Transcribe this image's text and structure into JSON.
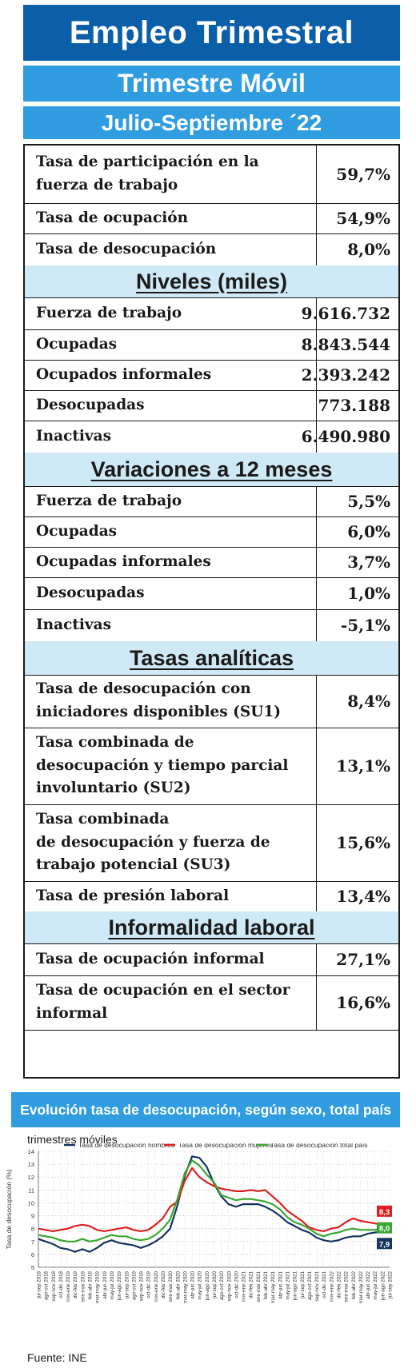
{
  "header": {
    "title": "Empleo Trimestral",
    "subtitle": "Trimestre Móvil",
    "period": "Julio-Septiembre ´22"
  },
  "summary": [
    {
      "label": [
        "Tasa de participación en la",
        "fuerza de trabajo"
      ],
      "value": "59,7%"
    },
    {
      "label": [
        "Tasa de ocupación"
      ],
      "value": "54,9%"
    },
    {
      "label": [
        "Tasa de desocupación"
      ],
      "value": "8,0%"
    }
  ],
  "niveles": {
    "title": "Niveles (miles)",
    "rows": [
      {
        "label": [
          "Fuerza de trabajo"
        ],
        "value": "9.616.732"
      },
      {
        "label": [
          "Ocupadas"
        ],
        "value": "8.843.544"
      },
      {
        "label": [
          "Ocupados informales"
        ],
        "value": "2.393.242"
      },
      {
        "label": [
          "Desocupadas"
        ],
        "value": "773.188"
      },
      {
        "label": [
          "Inactivas"
        ],
        "value": "6.490.980"
      }
    ]
  },
  "variaciones": {
    "title": "Variaciones a 12 meses",
    "rows": [
      {
        "label": [
          "Fuerza de trabajo"
        ],
        "value": "5,5%"
      },
      {
        "label": [
          "Ocupadas"
        ],
        "value": "6,0%"
      },
      {
        "label": [
          "Ocupadas informales"
        ],
        "value": "3,7%"
      },
      {
        "label": [
          "Desocupadas"
        ],
        "value": "1,0%"
      },
      {
        "label": [
          "Inactivas"
        ],
        "value": "-5,1%"
      }
    ]
  },
  "analiticas": {
    "title": "Tasas analíticas",
    "rows": [
      {
        "label": [
          "Tasa de desocupación con",
          "iniciadores disponibles (SU1)"
        ],
        "value": "8,4%"
      },
      {
        "label": [
          "Tasa combinada de",
          "desocupación y tiempo parcial",
          "involuntario (SU2)"
        ],
        "value": "13,1%"
      },
      {
        "label": [
          "Tasa combinada",
          "de desocupación y fuerza de",
          "trabajo potencial (SU3)"
        ],
        "value": "15,6%"
      },
      {
        "label": [
          "Tasa de presión laboral"
        ],
        "value": "13,4%"
      }
    ]
  },
  "informalidad": {
    "title": "Informalidad laboral",
    "rows": [
      {
        "label": [
          "Tasa de ocupación informal"
        ],
        "value": "27,1%"
      },
      {
        "label": [
          "Tasa de ocupación en el sector",
          "informal"
        ],
        "value": "16,6%"
      }
    ]
  },
  "chart_section": {
    "banner": "Evolución tasa de desocupación, según sexo, total país",
    "subtitle": "trimestres móviles"
  },
  "chart_data": {
    "type": "line",
    "ylabel": "Tasa de desocupación (%)",
    "ylim": [
      5,
      14
    ],
    "yticks": [
      5,
      6,
      7,
      8,
      9,
      10,
      11,
      12,
      13,
      14
    ],
    "grid": true,
    "legend_position": "top",
    "x": [
      "jul-sep 2018",
      "ago-oct 2018",
      "sep-nov 2018",
      "oct-dic 2018",
      "nov-ene 2019",
      "dic-feb 2019",
      "ene-mar 2019",
      "feb-abr 2019",
      "mar-may 2019",
      "abr-jun 2019",
      "may-jul 2019",
      "jun-ago 2019",
      "jul-sep 2019",
      "ago-oct 2019",
      "sep-nov 2019",
      "oct-dic 2019",
      "nov-ene 2020",
      "dic-feb 2020",
      "ene-mar 2020",
      "feb-abr 2020",
      "mar-may 2020",
      "abr-jun 2020",
      "may-jul 2020",
      "jun-ago 2020",
      "jul-sep 2020",
      "ago-oct 2020",
      "sep-nov 2020",
      "oct-dic 2020",
      "nov-ene 2021",
      "dic-feb 2021",
      "ene-mar 2021",
      "feb-abr 2021",
      "mar-may 2021",
      "abr-jun 2021",
      "may-jul 2021",
      "jun-ago 2021",
      "jul-sep 2021",
      "ago-oct 2021",
      "sep-nov 2021",
      "oct-dic 2021",
      "nov-ene 2022",
      "dic-feb 2022",
      "ene-mar 2022",
      "feb-abr 2022",
      "mar-may 2022",
      "abr-jun 2022",
      "may-jul 2022",
      "jun-ago 2022",
      "jul-sep 2022"
    ],
    "series": [
      {
        "name": "Tasa de desocupación hombres",
        "color": "#16365f",
        "values": [
          7.2,
          7.0,
          6.8,
          6.5,
          6.4,
          6.2,
          6.4,
          6.2,
          6.5,
          6.9,
          7.1,
          6.9,
          6.8,
          6.7,
          6.5,
          6.7,
          7.0,
          7.4,
          8.0,
          9.8,
          12.1,
          13.6,
          13.5,
          12.8,
          11.5,
          10.5,
          9.9,
          9.7,
          9.9,
          9.9,
          9.9,
          9.7,
          9.4,
          9.0,
          8.5,
          8.2,
          7.9,
          7.7,
          7.3,
          7.1,
          7.0,
          7.1,
          7.3,
          7.4,
          7.4,
          7.6,
          7.7,
          7.8,
          7.9
        ]
      },
      {
        "name": "Tasa de desocupación mujeres",
        "color": "#e02020",
        "values": [
          8.0,
          7.9,
          7.8,
          7.9,
          8.0,
          8.2,
          8.3,
          8.2,
          7.9,
          7.8,
          7.9,
          8.0,
          8.1,
          7.9,
          7.8,
          7.9,
          8.3,
          8.8,
          9.7,
          10.1,
          11.7,
          12.7,
          12.0,
          11.6,
          11.3,
          11.1,
          11.0,
          10.9,
          10.9,
          11.0,
          10.9,
          11.0,
          10.5,
          10.0,
          9.4,
          9.0,
          8.6,
          8.1,
          7.9,
          7.8,
          8.0,
          8.1,
          8.5,
          8.8,
          8.6,
          8.5,
          8.4,
          8.3,
          8.3
        ]
      },
      {
        "name": "Tasa de desocupación total país",
        "color": "#3aa832",
        "values": [
          7.5,
          7.4,
          7.3,
          7.1,
          7.0,
          7.0,
          7.2,
          7.0,
          7.1,
          7.3,
          7.5,
          7.4,
          7.4,
          7.2,
          7.1,
          7.2,
          7.5,
          8.0,
          8.7,
          10.3,
          12.3,
          13.3,
          12.9,
          12.2,
          11.6,
          10.6,
          10.4,
          10.2,
          10.3,
          10.3,
          10.2,
          10.1,
          9.9,
          9.5,
          8.9,
          8.5,
          8.3,
          8.0,
          7.6,
          7.4,
          7.6,
          7.7,
          7.9,
          8.0,
          7.9,
          7.9,
          7.9,
          8.0,
          8.0
        ]
      }
    ],
    "end_labels": [
      {
        "text": "8,3",
        "color": "#e02020"
      },
      {
        "text": "8,0",
        "color": "#3aa832"
      },
      {
        "text": "7,9",
        "color": "#16365f"
      }
    ]
  },
  "footer": {
    "source": "Fuente: INE"
  }
}
